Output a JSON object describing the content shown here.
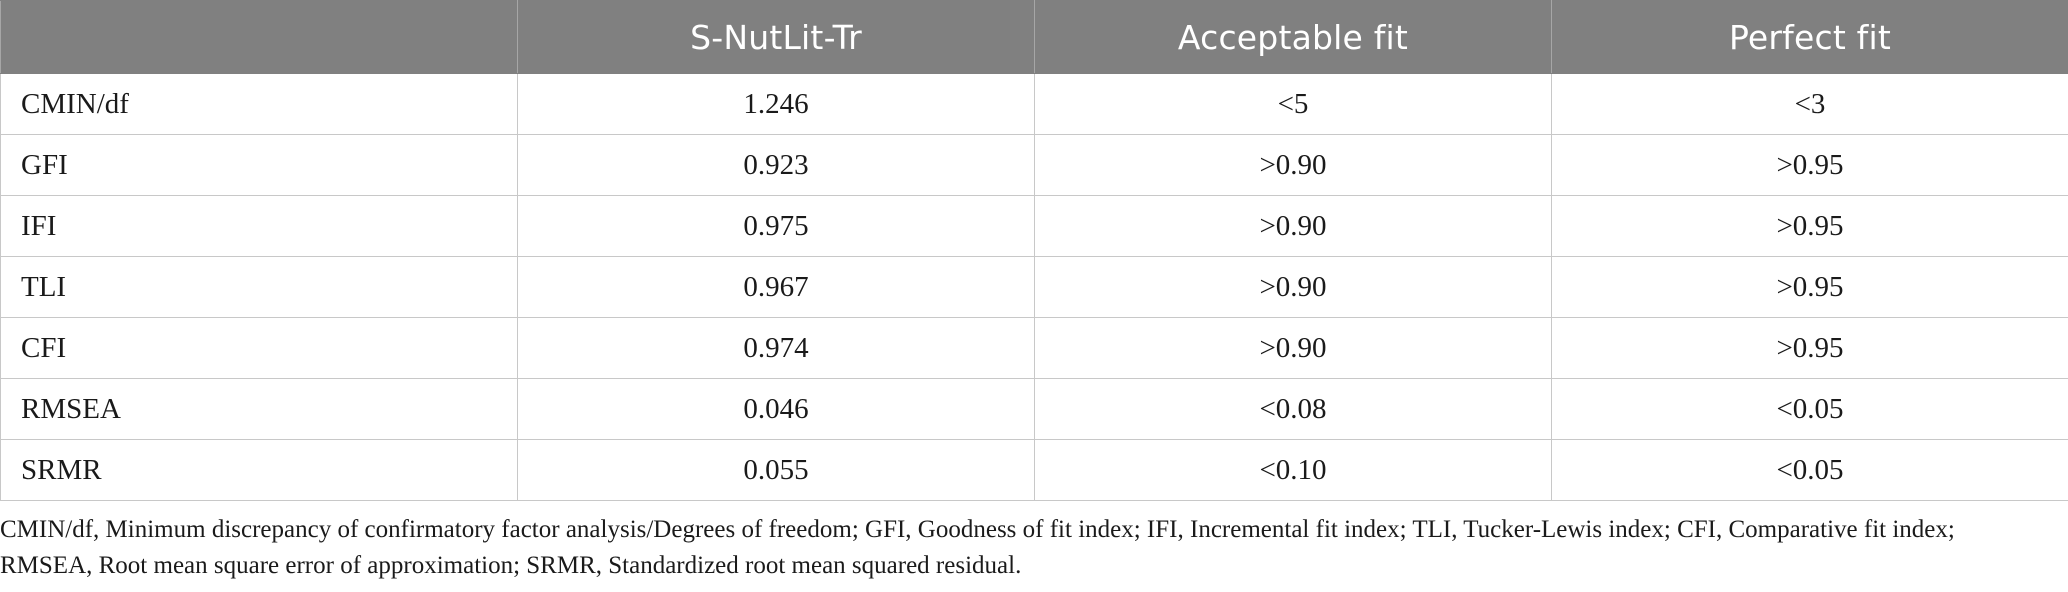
{
  "table": {
    "headers": [
      "",
      "S-NutLit-Tr",
      "Acceptable fit",
      "Perfect fit"
    ],
    "rows": [
      [
        "CMIN/df",
        "1.246",
        "<5",
        "<3"
      ],
      [
        "GFI",
        "0.923",
        ">0.90",
        ">0.95"
      ],
      [
        "IFI",
        "0.975",
        ">0.90",
        ">0.95"
      ],
      [
        "TLI",
        "0.967",
        ">0.90",
        ">0.95"
      ],
      [
        "CFI",
        "0.974",
        ">0.90",
        ">0.95"
      ],
      [
        "RMSEA",
        "0.046",
        "<0.08",
        "<0.05"
      ],
      [
        "SRMR",
        "0.055",
        "<0.10",
        "<0.05"
      ]
    ]
  },
  "footnote": "CMIN/df, Minimum discrepancy of confirmatory factor analysis/Degrees of freedom; GFI, Goodness of fit index; IFI, Incremental fit index; TLI, Tucker-Lewis index; CFI, Comparative fit index; RMSEA, Root mean square error of approximation; SRMR, Standardized root mean squared residual."
}
